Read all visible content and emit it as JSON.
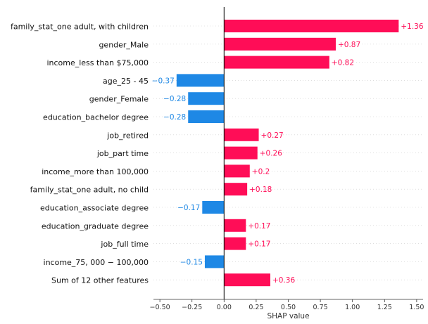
{
  "chart_data": {
    "type": "bar",
    "orientation": "horizontal",
    "xlabel": "SHAP value",
    "xlim": [
      -0.55,
      1.55
    ],
    "xticks": [
      -0.5,
      -0.25,
      0.0,
      0.25,
      0.5,
      0.75,
      1.0,
      1.25,
      1.5
    ],
    "xtick_labels": [
      "−0.50",
      "−0.25",
      "0.00",
      "0.25",
      "0.50",
      "0.75",
      "1.00",
      "1.25",
      "1.50"
    ],
    "categories": [
      "family_stat_one adult, with children",
      "gender_Male",
      "income_less than $75,000",
      "age_25 - 45",
      "gender_Female",
      "education_bachelor degree",
      "job_retired",
      "job_part time",
      "income_more than 100,000",
      "family_stat_one adult, no child",
      "education_associate degree",
      "education_graduate degree",
      "job_full time",
      "income_75, 000 − 100,000",
      "Sum of 12 other features"
    ],
    "values": [
      1.36,
      0.87,
      0.82,
      -0.37,
      -0.28,
      -0.28,
      0.27,
      0.26,
      0.2,
      0.18,
      -0.17,
      0.17,
      0.17,
      -0.15,
      0.36
    ],
    "value_labels": [
      "+1.36",
      "+0.87",
      "+0.82",
      "−0.37",
      "−0.28",
      "−0.28",
      "+0.27",
      "+0.26",
      "+0.2",
      "+0.18",
      "−0.17",
      "+0.17",
      "+0.17",
      "−0.15",
      "+0.36"
    ],
    "colors": {
      "positive": "#ff0d57",
      "negative": "#1e88e5",
      "axis": "#333333",
      "grid": "#cccccc"
    },
    "grid": false
  }
}
